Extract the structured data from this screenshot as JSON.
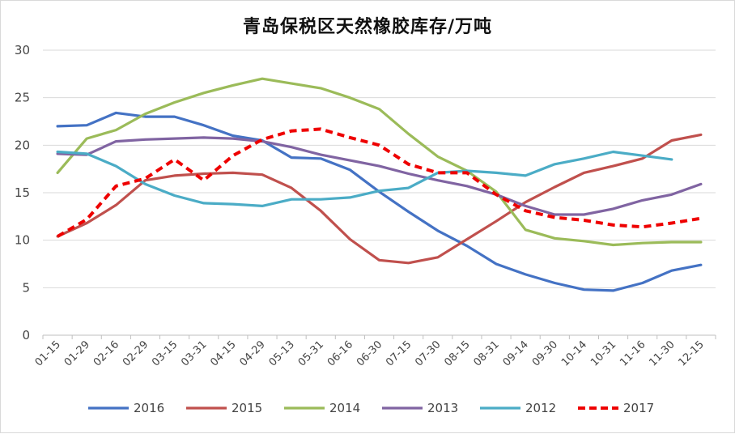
{
  "chart_data": {
    "type": "line",
    "title": "青岛保税区天然橡胶库存/万吨",
    "xlabel": "",
    "ylabel": "",
    "ylim": [
      0,
      30
    ],
    "yticks": [
      "0",
      "5",
      "10",
      "15",
      "20",
      "25",
      "30"
    ],
    "grid": "horizontal",
    "legend_position": "bottom",
    "categories": [
      "01-15",
      "01-29",
      "02-16",
      "02-29",
      "03-15",
      "03-31",
      "04-15",
      "04-29",
      "05-13",
      "05-31",
      "06-16",
      "06-30",
      "07-15",
      "07-30",
      "08-15",
      "08-31",
      "09-14",
      "09-30",
      "10-14",
      "10-31",
      "11-16",
      "11-30",
      "12-15"
    ],
    "series": [
      {
        "name": "2016",
        "color": "#4472c4",
        "dashed": false,
        "values": [
          22.0,
          22.1,
          23.4,
          23.0,
          23.0,
          22.1,
          21.0,
          20.5,
          18.7,
          18.6,
          17.4,
          15.1,
          13.0,
          11.0,
          9.4,
          7.5,
          6.4,
          5.5,
          4.8,
          4.7,
          5.5,
          6.8,
          7.4
        ]
      },
      {
        "name": "2015",
        "color": "#c0504d",
        "dashed": false,
        "values": [
          10.4,
          11.8,
          13.7,
          16.3,
          16.8,
          17.0,
          17.1,
          16.9,
          15.5,
          13.1,
          10.1,
          7.9,
          7.6,
          8.2,
          10.1,
          12.0,
          14.0,
          15.6,
          17.1,
          17.8,
          18.6,
          20.5,
          21.1
        ]
      },
      {
        "name": "2014",
        "color": "#9bbb59",
        "dashed": false,
        "values": [
          17.1,
          20.7,
          21.6,
          23.3,
          24.5,
          25.5,
          26.3,
          27.0,
          26.5,
          26.0,
          25.0,
          23.8,
          21.2,
          18.8,
          17.3,
          15.1,
          11.1,
          10.2,
          9.9,
          9.5,
          9.7,
          9.8,
          9.8
        ]
      },
      {
        "name": "2013",
        "color": "#8064a2",
        "dashed": false,
        "values": [
          19.1,
          19.0,
          20.4,
          20.6,
          20.7,
          20.8,
          20.7,
          20.4,
          19.8,
          19.0,
          18.4,
          17.8,
          17.0,
          16.3,
          15.7,
          14.8,
          13.6,
          12.7,
          12.7,
          13.3,
          14.2,
          14.8,
          15.9
        ]
      },
      {
        "name": "2012",
        "color": "#4bacc6",
        "dashed": false,
        "values": [
          19.3,
          19.1,
          17.8,
          15.9,
          14.7,
          13.9,
          13.8,
          13.6,
          14.3,
          14.3,
          14.5,
          15.2,
          15.5,
          17.1,
          17.3,
          17.1,
          16.8,
          18.0,
          18.6,
          19.3,
          18.9,
          18.5,
          null
        ]
      },
      {
        "name": "2017",
        "color": "#ee0000",
        "dashed": true,
        "values": [
          10.4,
          12.2,
          15.7,
          16.5,
          18.5,
          16.3,
          18.9,
          20.6,
          21.5,
          21.7,
          20.8,
          20.0,
          18.0,
          17.1,
          17.1,
          14.8,
          13.1,
          12.4,
          12.1,
          11.6,
          11.4,
          11.8,
          12.3
        ]
      }
    ]
  }
}
